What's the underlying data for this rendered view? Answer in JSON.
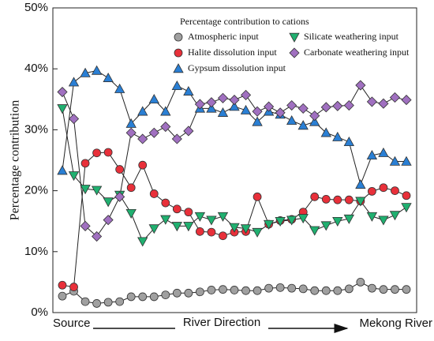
{
  "chart_data": {
    "type": "line",
    "y_label": "Percentage contribution",
    "legend_title": "Percentage contribution to cations",
    "annotation": "River Direction",
    "categories": [
      "Source",
      null,
      null,
      null,
      null,
      null,
      null,
      null,
      null,
      null,
      null,
      null,
      null,
      null,
      null,
      null,
      null,
      null,
      null,
      null,
      null,
      null,
      null,
      null,
      null,
      null,
      null,
      null,
      null,
      null,
      "Mekong River"
    ],
    "ylim": [
      0,
      50
    ],
    "yticks": [
      {
        "value": 0,
        "label": "0%"
      },
      {
        "value": 10,
        "label": "10%"
      },
      {
        "value": 20,
        "label": "20%"
      },
      {
        "value": 30,
        "label": "30%"
      },
      {
        "value": 40,
        "label": "40%"
      },
      {
        "value": 50,
        "label": "50%"
      }
    ],
    "line_color": "#222222",
    "series": [
      {
        "name": "Atmospheric input",
        "color": "#a0a0a0",
        "marker": "circle",
        "values": [
          2.7,
          3.5,
          1.8,
          1.5,
          1.7,
          1.8,
          2.6,
          2.6,
          2.6,
          2.9,
          3.2,
          3.2,
          3.4,
          3.7,
          3.8,
          3.7,
          3.6,
          3.6,
          4.0,
          4.1,
          4.0,
          3.9,
          3.6,
          3.6,
          3.6,
          3.9,
          5.0,
          4.0,
          3.8,
          3.8,
          3.8
        ]
      },
      {
        "name": "Halite dissolution input",
        "color": "#e8303a",
        "marker": "circle",
        "values": [
          4.5,
          4.2,
          24.5,
          26.2,
          26.3,
          23.5,
          20.5,
          24.2,
          19.5,
          18.0,
          17.0,
          16.5,
          13.3,
          13.2,
          12.6,
          13.2,
          13.3,
          19.0,
          14.5,
          15.1,
          15.3,
          16.5,
          19.0,
          18.6,
          18.5,
          18.5,
          18.3,
          19.9,
          20.5,
          20.0,
          19.2
        ]
      },
      {
        "name": "Gypsum dissolution input",
        "color": "#2a7fd4",
        "marker": "triangle-up",
        "values": [
          23.3,
          37.8,
          39.3,
          39.7,
          38.5,
          36.7,
          31.0,
          33.0,
          35.0,
          33.0,
          37.2,
          36.3,
          33.5,
          33.5,
          32.8,
          33.8,
          33.2,
          31.3,
          33.0,
          32.5,
          31.5,
          30.7,
          31.3,
          29.5,
          28.8,
          28.0,
          21.0,
          25.8,
          26.2,
          24.8,
          24.8
        ]
      },
      {
        "name": "Silicate weathering input",
        "color": "#20b070",
        "marker": "triangle-down",
        "values": [
          33.5,
          22.5,
          20.3,
          20.1,
          18.2,
          19.3,
          16.3,
          11.7,
          13.8,
          15.3,
          14.2,
          14.2,
          15.8,
          15.2,
          15.8,
          14.0,
          13.8,
          13.2,
          14.5,
          15.0,
          15.2,
          15.5,
          13.5,
          14.3,
          15.0,
          15.4,
          18.3,
          15.8,
          15.2,
          16.0,
          17.3
        ]
      },
      {
        "name": "Carbonate weathering input",
        "color": "#a070c0",
        "marker": "diamond",
        "values": [
          36.2,
          31.8,
          14.2,
          12.5,
          15.2,
          19.0,
          29.5,
          28.5,
          29.5,
          30.5,
          28.5,
          29.8,
          34.2,
          34.5,
          35.2,
          34.9,
          35.7,
          33.0,
          33.8,
          32.8,
          34.0,
          33.5,
          32.3,
          33.7,
          33.9,
          34.0,
          37.3,
          34.6,
          34.3,
          35.3,
          34.9
        ]
      }
    ]
  }
}
